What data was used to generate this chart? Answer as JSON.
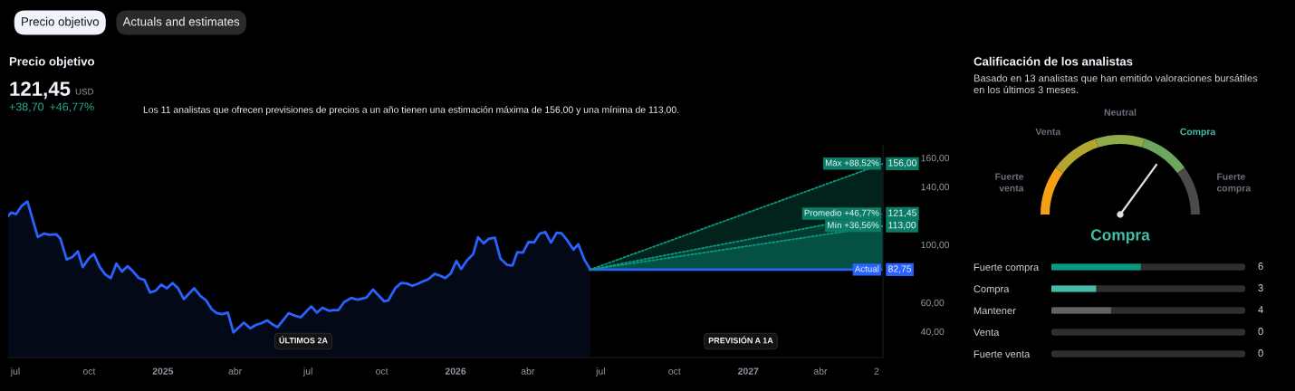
{
  "chart_data": [
    {
      "type": "other",
      "annotations": [
        "Precio objetivo",
        "Actuals and estimates"
      ]
    },
    {
      "type": "line",
      "title": "Precio objetivo",
      "annotations": [
        "121,45",
        "USD",
        "+38,70",
        "+46,77%",
        "Los 11 analistas que ofrecen previsiones de precios a un año tienen una estimación máxima de 156,00 y una mínima de 113,00.",
        "ÚLTIMOS 2A",
        "PREVISIÓN A 1A"
      ],
      "series": [
        {
          "type": "area",
          "color": "#2962ff",
          "x": [
            "2024-06-22",
            "2024-06-26",
            "2024-07-02",
            "2024-07-09",
            "2024-07-16",
            "2024-07-29",
            "2024-08-06",
            "2024-08-12",
            "2024-08-21",
            "2024-08-26",
            "2024-09-03",
            "2024-09-10",
            "2024-09-17",
            "2024-09-23",
            "2024-10-01",
            "2024-10-07",
            "2024-10-14",
            "2024-10-21",
            "2024-10-28",
            "2024-11-04",
            "2024-11-11",
            "2024-11-18",
            "2024-11-25",
            "2024-12-02",
            "2024-12-09",
            "2024-12-16",
            "2024-12-23",
            "2024-12-30",
            "2025-01-06",
            "2025-01-13",
            "2025-01-20",
            "2025-01-27",
            "2025-02-09",
            "2025-02-17",
            "2025-02-24",
            "2025-03-03",
            "2025-03-09",
            "2025-03-16",
            "2025-03-23",
            "2025-03-30",
            "2025-04-12",
            "2025-04-20",
            "2025-04-27",
            "2025-05-04",
            "2025-05-11",
            "2025-05-18",
            "2025-05-24",
            "2025-06-07",
            "2025-06-15",
            "2025-06-22",
            "2025-07-05",
            "2025-07-12",
            "2025-07-19",
            "2025-07-27",
            "2025-08-02",
            "2025-08-08",
            "2025-08-15",
            "2025-08-24",
            "2025-09-01",
            "2025-09-12",
            "2025-09-20",
            "2025-10-04",
            "2025-10-09",
            "2025-10-18",
            "2025-10-25",
            "2025-11-01",
            "2025-11-08",
            "2025-11-15",
            "2025-11-21",
            "2025-11-28",
            "2025-12-06",
            "2025-12-12",
            "2025-12-19",
            "2025-12-26",
            "2026-01-02",
            "2026-01-08",
            "2026-01-15",
            "2026-01-23",
            "2026-01-29",
            "2026-02-05",
            "2026-02-11",
            "2026-02-19",
            "2026-02-26",
            "2026-03-06",
            "2026-03-13",
            "2026-03-19",
            "2026-03-26",
            "2026-04-02",
            "2026-04-09",
            "2026-04-16",
            "2026-04-23",
            "2026-04-30",
            "2026-05-07",
            "2026-05-13",
            "2026-05-20",
            "2026-05-28",
            "2026-06-03",
            "2026-06-11",
            "2026-06-18"
          ],
          "values": [
            119.8,
            122.2,
            121.1,
            126.9,
            129.8,
            105.3,
            107.7,
            106.9,
            107.2,
            104.3,
            89.8,
            91.4,
            95.3,
            84.5,
            90.8,
            93.5,
            84.8,
            79.5,
            76.9,
            86.9,
            81.4,
            85.1,
            81.4,
            76.9,
            75.6,
            66.9,
            68.2,
            72.4,
            69.8,
            73.5,
            69.8,
            62.4,
            69.8,
            64.5,
            61.4,
            55.3,
            52.7,
            51.9,
            53.0,
            39.3,
            46.1,
            42.2,
            44.5,
            45.8,
            47.7,
            44.8,
            43.0,
            52.7,
            50.8,
            49.8,
            57.4,
            53.0,
            56.4,
            54.3,
            54.8,
            54.8,
            60.3,
            63.2,
            61.9,
            63.5,
            69.0,
            60.8,
            61.4,
            70.1,
            73.5,
            73.2,
            71.6,
            73.0,
            74.5,
            76.1,
            79.8,
            78.7,
            76.9,
            80.1,
            88.7,
            83.2,
            89.0,
            93.5,
            105.1,
            100.9,
            104.0,
            104.8,
            90.3,
            86.1,
            85.6,
            94.8,
            94.5,
            101.9,
            101.6,
            107.7,
            108.7,
            101.4,
            108.2,
            108.0,
            103.2,
            96.6,
            100.3,
            89.3,
            82.75
          ]
        },
        {
          "name": "Máx +88,52%",
          "type": "line",
          "color": "#089981",
          "line_style": "dotted",
          "x": [
            "2026-06-18",
            "2027-06-18"
          ],
          "values": [
            82.75,
            156
          ],
          "value_labels": [
            null,
            "156,00"
          ]
        },
        {
          "name": "Promedio +46,77%",
          "type": "line",
          "color": "#089981",
          "line_style": "dotted",
          "x": [
            "2026-06-18",
            "2027-06-18"
          ],
          "values": [
            82.75,
            121.45
          ],
          "value_labels": [
            null,
            "121,45"
          ]
        },
        {
          "name": "Mín +36,56%",
          "type": "line",
          "color": "#089981",
          "line_style": "dotted",
          "x": [
            "2026-06-18",
            "2027-06-18"
          ],
          "values": [
            82.75,
            113
          ],
          "value_labels": [
            null,
            "113,00"
          ]
        },
        {
          "name": "Actual",
          "type": "line",
          "color": "#2962ff",
          "x": [
            "2026-06-18",
            "2027-06-18"
          ],
          "values": [
            82.75,
            82.75
          ],
          "value_labels": [
            null,
            "82,75"
          ]
        }
      ],
      "xlim": [
        "2024-06-22",
        "2027-06-18"
      ],
      "xticks": [
        {
          "value": "2024-07-01",
          "label": "jul"
        },
        {
          "value": "2024-10-01",
          "label": "oct"
        },
        {
          "value": "2025-01-01",
          "label": "2025"
        },
        {
          "value": "2025-04-01",
          "label": "abr"
        },
        {
          "value": "2025-07-01",
          "label": "jul"
        },
        {
          "value": "2025-10-01",
          "label": "oct"
        },
        {
          "value": "2026-01-01",
          "label": "2026"
        },
        {
          "value": "2026-04-01",
          "label": "abr"
        },
        {
          "value": "2026-07-01",
          "label": "jul"
        },
        {
          "value": "2026-10-01",
          "label": "oct"
        },
        {
          "value": "2027-01-01",
          "label": "2027"
        },
        {
          "value": "2027-04-01",
          "label": "abr"
        },
        {
          "value": "2027-06-10",
          "label": "2"
        }
      ],
      "ylim": [
        22,
        169
      ],
      "yticks": [
        {
          "value": 40,
          "label": "40,00"
        },
        {
          "value": 60,
          "label": "60,00"
        },
        {
          "value": 100,
          "label": "100,00"
        },
        {
          "value": 140,
          "label": "140,00"
        },
        {
          "value": 160,
          "label": "160,00"
        }
      ],
      "grid": false
    },
    {
      "type": "donut",
      "title": "Calificación de los analistas",
      "subtitle": "Basado en 13 analistas que han emitido valoraciones bursátiles\nen los últimos 3 meses.",
      "categories": [
        "Fuerte\nventa",
        "Venta",
        "Neutral",
        "Compra",
        "Fuerte\ncompra"
      ],
      "values": [
        20,
        20,
        20,
        20,
        20
      ],
      "colors": [
        "#f59f14",
        "#b3a531",
        "#92ab4a",
        "#6da65d",
        "#4a4a4a"
      ],
      "needle": "Compra",
      "annotations": [
        "Compra"
      ]
    },
    {
      "type": "bar",
      "orientation": "horizontal",
      "categories": [
        "Fuerte compra",
        "Compra",
        "Mantener",
        "Venta",
        "Fuerte venta"
      ],
      "values": [
        6,
        3,
        4,
        0,
        0
      ],
      "colors": [
        "#089981",
        "#42bda8",
        "#636363",
        "#636363",
        "#636363"
      ],
      "xlim": [
        0,
        13
      ],
      "data_labels": true,
      "tick_labels": "y"
    }
  ]
}
